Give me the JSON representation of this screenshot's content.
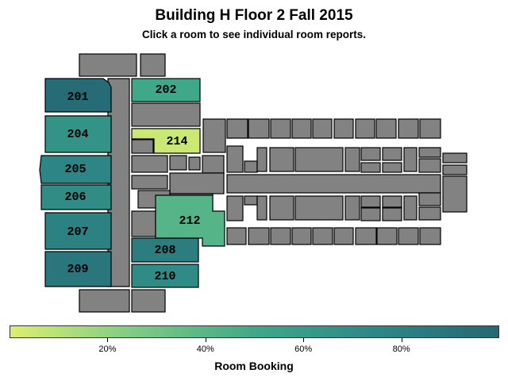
{
  "title": "Building H Floor 2 Fall 2015",
  "subtitle": "Click a room to see individual room reports.",
  "colors": {
    "scale": [
      "#dcef6f",
      "#7fcb86",
      "#3fa889",
      "#2e8786",
      "#256874"
    ],
    "unreported": "#828282",
    "outline": "#000000"
  },
  "rooms": [
    {
      "label": "201",
      "booking": 0.97
    },
    {
      "label": "202",
      "booking": 0.5
    },
    {
      "label": "204",
      "booking": 0.66
    },
    {
      "label": "205",
      "booking": 0.77
    },
    {
      "label": "206",
      "booking": 0.71
    },
    {
      "label": "207",
      "booking": 0.8
    },
    {
      "label": "208",
      "booking": 0.83
    },
    {
      "label": "209",
      "booking": 0.88
    },
    {
      "label": "210",
      "booking": 0.72
    },
    {
      "label": "212",
      "booking": 0.41
    },
    {
      "label": "214",
      "booking": 0.05
    }
  ],
  "legend": {
    "title": "Room Booking",
    "min": 0,
    "max": 1,
    "ticks": [
      {
        "label": "20%",
        "value": 0.2
      },
      {
        "label": "40%",
        "value": 0.4
      },
      {
        "label": "60%",
        "value": 0.6
      },
      {
        "label": "80%",
        "value": 0.8
      }
    ]
  }
}
